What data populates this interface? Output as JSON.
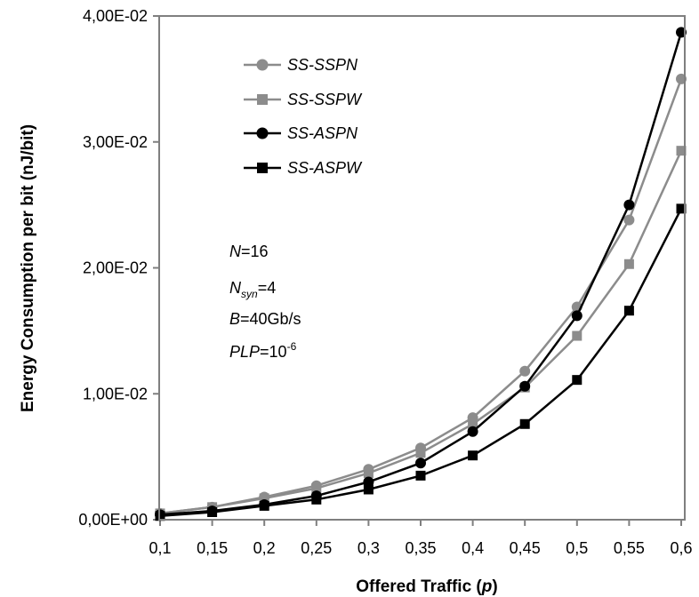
{
  "chart_data": {
    "type": "line",
    "xlabel_main": "Offered Traffic (",
    "xlabel_var": "p",
    "xlabel_end": ")",
    "ylabel": "Energy Consumption per bit (nJ/bit)",
    "x": [
      0.1,
      0.15,
      0.2,
      0.25,
      0.3,
      0.35,
      0.4,
      0.45,
      0.5,
      0.55,
      0.6
    ],
    "x_tick_labels": [
      "0,1",
      "0,15",
      "0,2",
      "0,25",
      "0,3",
      "0,35",
      "0,4",
      "0,45",
      "0,5",
      "0,55",
      "0,6"
    ],
    "ylim": [
      0,
      0.04
    ],
    "y_ticks": [
      0,
      0.01,
      0.02,
      0.03,
      0.04
    ],
    "y_tick_labels": [
      "0,00E+00",
      "1,00E-02",
      "2,00E-02",
      "3,00E-02",
      "4,00E-02"
    ],
    "grid": false,
    "legend_position": "top-left",
    "series": [
      {
        "name": "SS-SSPN",
        "color": "#8c8c8c",
        "marker": "circle",
        "values": [
          0.0005,
          0.001,
          0.0018,
          0.0027,
          0.004,
          0.0057,
          0.0081,
          0.0118,
          0.0169,
          0.0238,
          0.035
        ]
      },
      {
        "name": "SS-SSPW",
        "color": "#8c8c8c",
        "marker": "square",
        "values": [
          0.0005,
          0.001,
          0.0017,
          0.0025,
          0.0037,
          0.0053,
          0.0076,
          0.0105,
          0.0146,
          0.0203,
          0.0293
        ]
      },
      {
        "name": "SS-ASPN",
        "color": "#000000",
        "marker": "circle",
        "values": [
          0.0004,
          0.0007,
          0.0012,
          0.0019,
          0.003,
          0.0045,
          0.007,
          0.0106,
          0.0162,
          0.025,
          0.0387
        ]
      },
      {
        "name": "SS-ASPW",
        "color": "#000000",
        "marker": "square",
        "values": [
          0.0003,
          0.0006,
          0.0011,
          0.0016,
          0.0024,
          0.0035,
          0.0051,
          0.0076,
          0.0111,
          0.0166,
          0.0247
        ]
      }
    ],
    "annotations": {
      "n_var": "N",
      "n_val": "=16",
      "nsyn_var": "N",
      "nsyn_sub": "syn",
      "nsyn_val": "=4",
      "b_var": "B",
      "b_val": "=40Gb/s",
      "plp_var": "PLP",
      "plp_val": "=10",
      "plp_exp": "-6"
    }
  }
}
